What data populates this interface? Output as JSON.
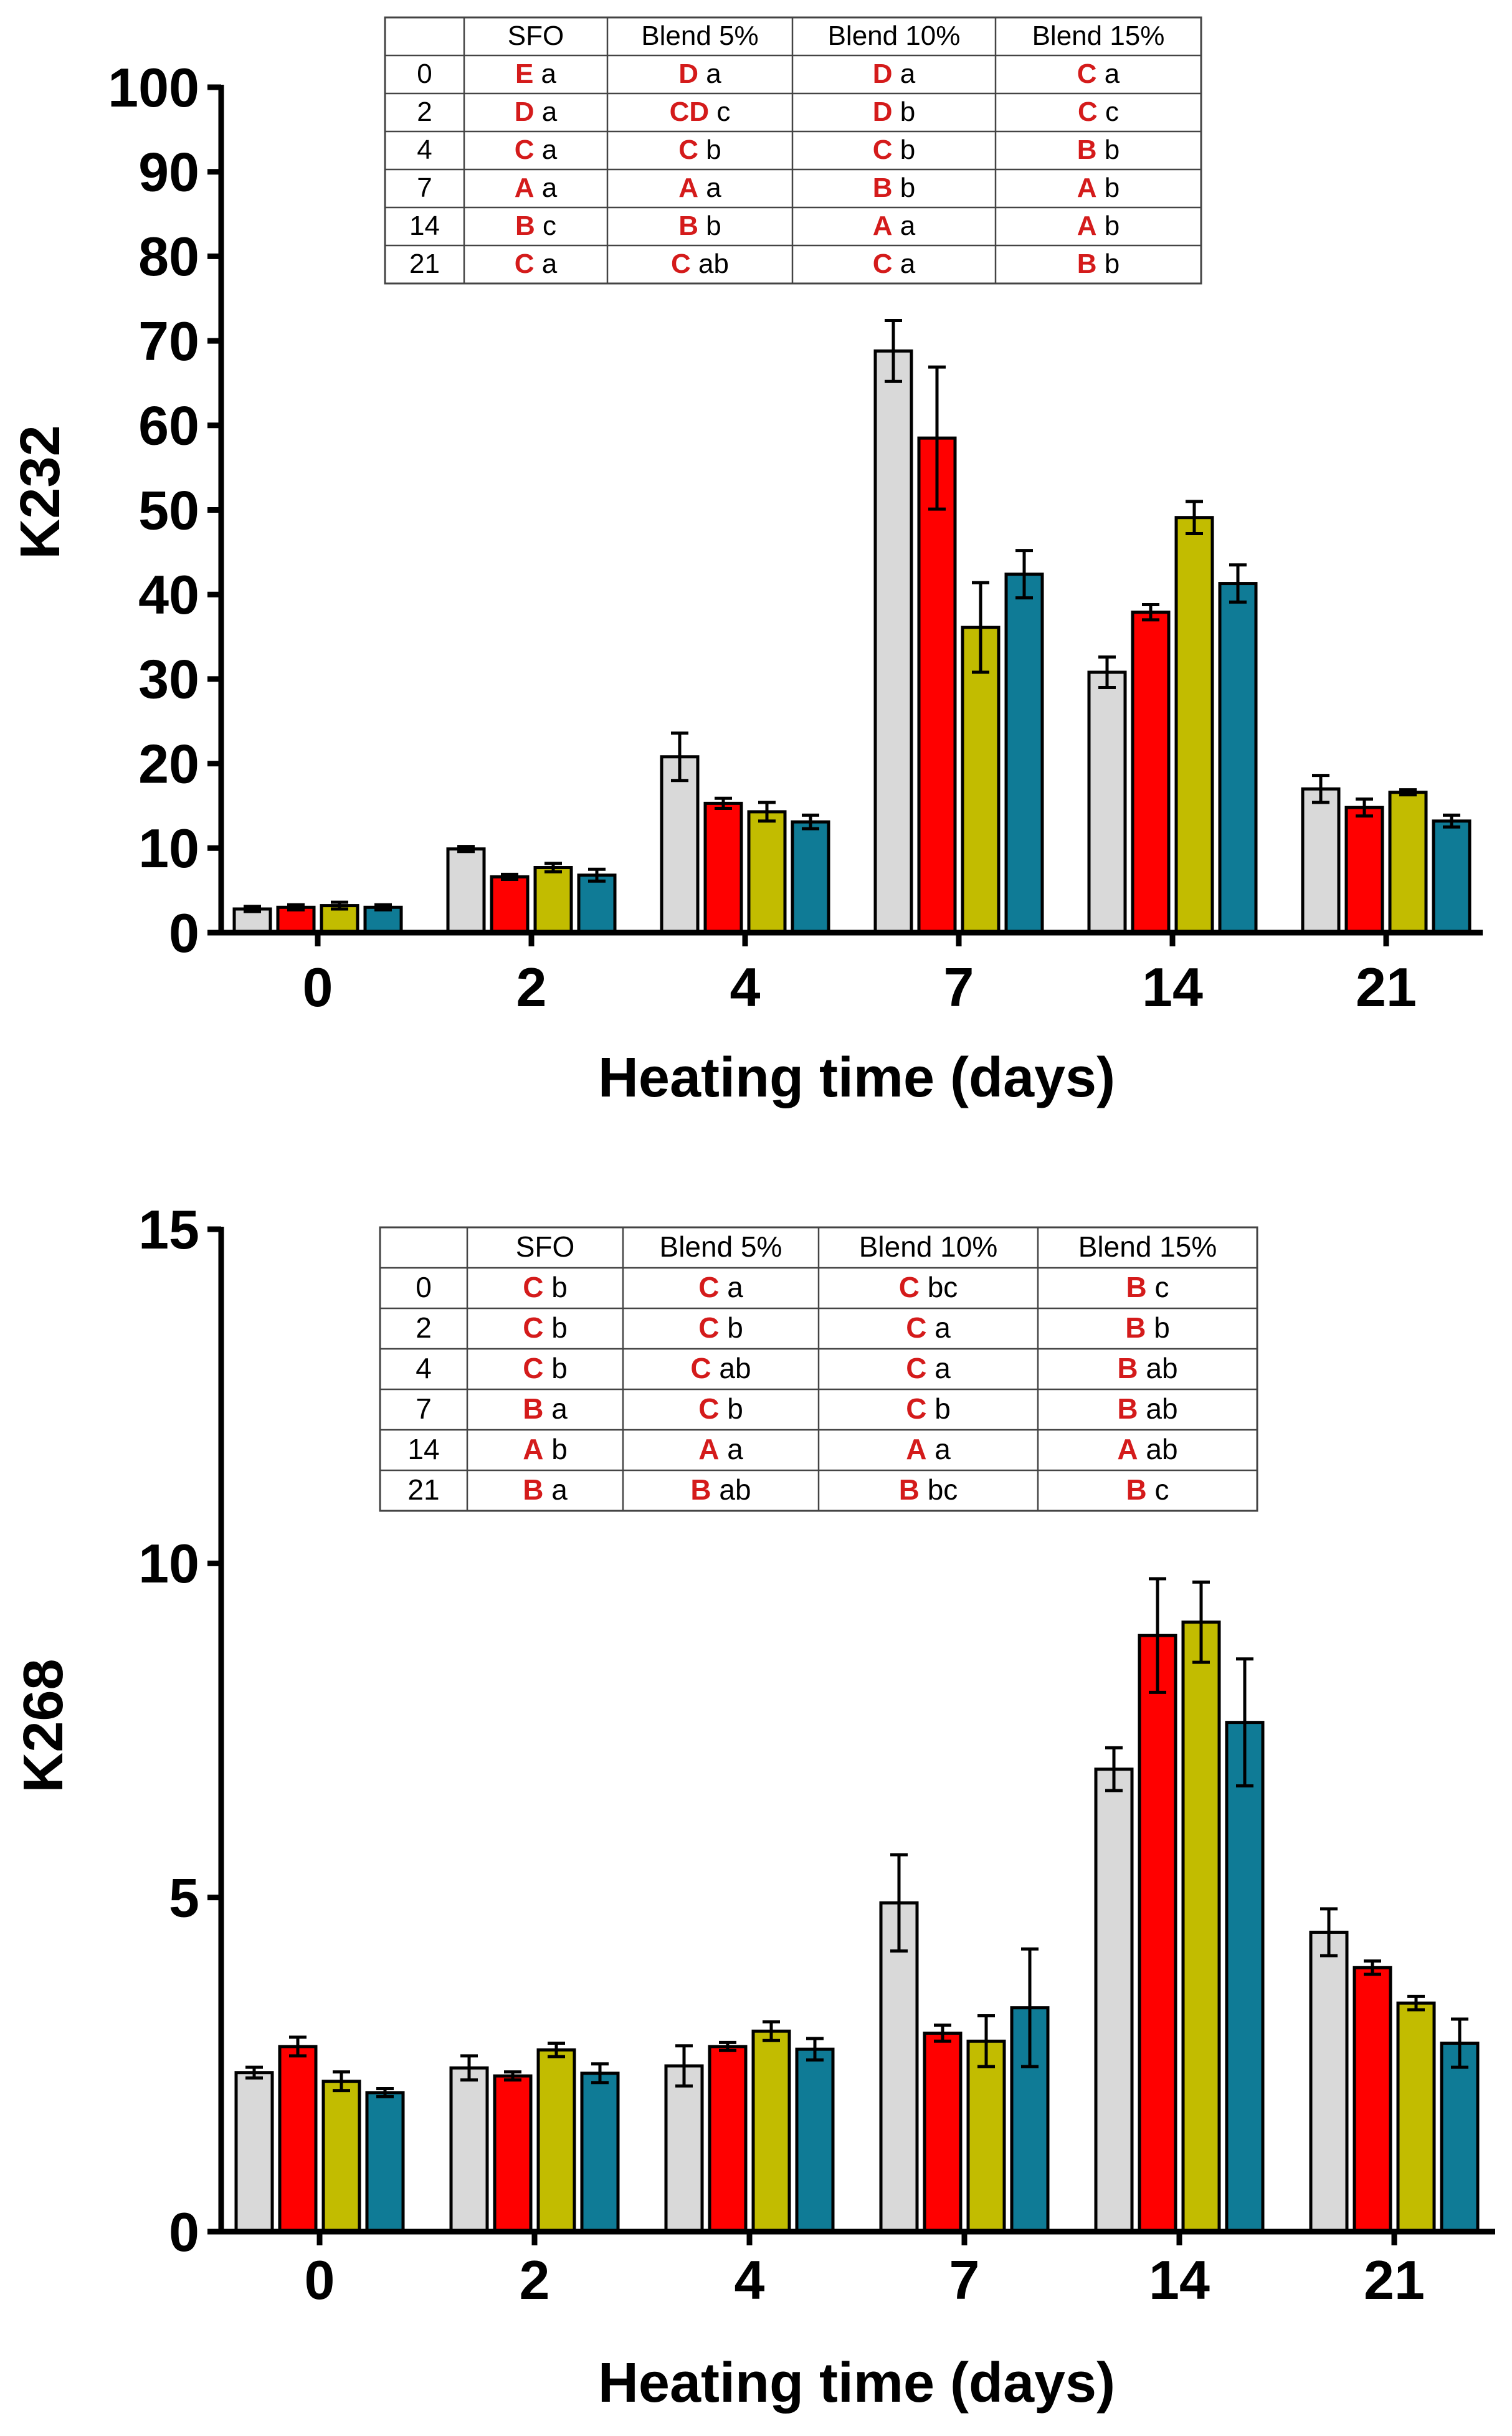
{
  "colors": {
    "series": [
      "#d9d9d9",
      "#ff0000",
      "#c2bc00",
      "#0f7b96"
    ],
    "letter_upper": "#d41b1b",
    "letter_lower": "#000000",
    "axis": "#000000"
  },
  "chart_data": [
    {
      "type": "bar",
      "ylabel": "K232",
      "xlabel": "Heating time (days)",
      "ylim": [
        0,
        100
      ],
      "yticks": [
        0,
        10,
        20,
        30,
        40,
        50,
        60,
        70,
        80,
        90,
        100
      ],
      "categories": [
        "0",
        "2",
        "4",
        "7",
        "14",
        "21"
      ],
      "series": [
        {
          "name": "SFO",
          "values": [
            2.8,
            9.9,
            20.8,
            68.8,
            30.8,
            17.0
          ],
          "errors": [
            0.3,
            0.3,
            2.8,
            3.6,
            1.8,
            1.6
          ]
        },
        {
          "name": "Blend 5%",
          "values": [
            3.0,
            6.6,
            15.3,
            58.5,
            37.9,
            14.8
          ],
          "errors": [
            0.3,
            0.3,
            0.6,
            8.4,
            0.9,
            1.0
          ]
        },
        {
          "name": "Blend 10%",
          "values": [
            3.2,
            7.7,
            14.3,
            36.1,
            49.1,
            16.6
          ],
          "errors": [
            0.4,
            0.5,
            1.1,
            5.3,
            1.9,
            0.3
          ]
        },
        {
          "name": "Blend 15%",
          "values": [
            3.0,
            6.8,
            13.1,
            42.4,
            41.3,
            13.2
          ],
          "errors": [
            0.3,
            0.7,
            0.8,
            2.8,
            2.2,
            0.7
          ]
        }
      ],
      "table": {
        "headers": [
          "",
          "SFO",
          "Blend 5%",
          "Blend 10%",
          "Blend 15%"
        ],
        "rows": [
          {
            "day": "0",
            "cells": [
              [
                "E",
                "a"
              ],
              [
                "D",
                "a"
              ],
              [
                "D",
                "a"
              ],
              [
                "C",
                "a"
              ]
            ]
          },
          {
            "day": "2",
            "cells": [
              [
                "D",
                "a"
              ],
              [
                "CD",
                "c"
              ],
              [
                "D",
                "b"
              ],
              [
                "C",
                "c"
              ]
            ]
          },
          {
            "day": "4",
            "cells": [
              [
                "C",
                "a"
              ],
              [
                "C",
                "b"
              ],
              [
                "C",
                "b"
              ],
              [
                "B",
                "b"
              ]
            ]
          },
          {
            "day": "7",
            "cells": [
              [
                "A",
                "a"
              ],
              [
                "A",
                "a"
              ],
              [
                "B",
                "b"
              ],
              [
                "A",
                "b"
              ]
            ]
          },
          {
            "day": "14",
            "cells": [
              [
                "B",
                "c"
              ],
              [
                "B",
                "b"
              ],
              [
                "A",
                "a"
              ],
              [
                "A",
                "b"
              ]
            ]
          },
          {
            "day": "21",
            "cells": [
              [
                "C",
                "a"
              ],
              [
                "C",
                "ab"
              ],
              [
                "C",
                "a"
              ],
              [
                "B",
                "b"
              ]
            ]
          }
        ]
      }
    },
    {
      "type": "bar",
      "ylabel": "K268",
      "xlabel": "Heating time (days)",
      "ylim": [
        0,
        15
      ],
      "yticks": [
        0,
        5,
        10,
        15
      ],
      "categories": [
        "0",
        "2",
        "4",
        "7",
        "14",
        "21"
      ],
      "series": [
        {
          "name": "SFO",
          "values": [
            2.38,
            2.45,
            2.48,
            4.92,
            6.92,
            4.48
          ],
          "errors": [
            0.08,
            0.18,
            0.3,
            0.72,
            0.32,
            0.35
          ]
        },
        {
          "name": "Blend 5%",
          "values": [
            2.77,
            2.33,
            2.77,
            2.97,
            8.92,
            3.95
          ],
          "errors": [
            0.14,
            0.06,
            0.06,
            0.12,
            0.85,
            0.1
          ]
        },
        {
          "name": "Blend 10%",
          "values": [
            2.25,
            2.72,
            3.0,
            2.85,
            9.12,
            3.42
          ],
          "errors": [
            0.14,
            0.1,
            0.14,
            0.38,
            0.6,
            0.1
          ]
        },
        {
          "name": "Blend 15%",
          "values": [
            2.08,
            2.37,
            2.73,
            3.35,
            7.62,
            2.82
          ],
          "errors": [
            0.06,
            0.14,
            0.16,
            0.88,
            0.95,
            0.36
          ]
        }
      ],
      "table": {
        "headers": [
          "",
          "SFO",
          "Blend 5%",
          "Blend 10%",
          "Blend 15%"
        ],
        "rows": [
          {
            "day": "0",
            "cells": [
              [
                "C",
                "b"
              ],
              [
                "C",
                "a"
              ],
              [
                "C",
                "bc"
              ],
              [
                "B",
                "c"
              ]
            ]
          },
          {
            "day": "2",
            "cells": [
              [
                "C",
                "b"
              ],
              [
                "C",
                "b"
              ],
              [
                "C",
                "a"
              ],
              [
                "B",
                "b"
              ]
            ]
          },
          {
            "day": "4",
            "cells": [
              [
                "C",
                "b"
              ],
              [
                "C",
                "ab"
              ],
              [
                "C",
                "a"
              ],
              [
                "B",
                "ab"
              ]
            ]
          },
          {
            "day": "7",
            "cells": [
              [
                "B",
                "a"
              ],
              [
                "C",
                "b"
              ],
              [
                "C",
                "b"
              ],
              [
                "B",
                "ab"
              ]
            ]
          },
          {
            "day": "14",
            "cells": [
              [
                "A",
                "b"
              ],
              [
                "A",
                "a"
              ],
              [
                "A",
                "a"
              ],
              [
                "A",
                "ab"
              ]
            ]
          },
          {
            "day": "21",
            "cells": [
              [
                "B",
                "a"
              ],
              [
                "B",
                "ab"
              ],
              [
                "B",
                "bc"
              ],
              [
                "B",
                "c"
              ]
            ]
          }
        ]
      }
    }
  ]
}
